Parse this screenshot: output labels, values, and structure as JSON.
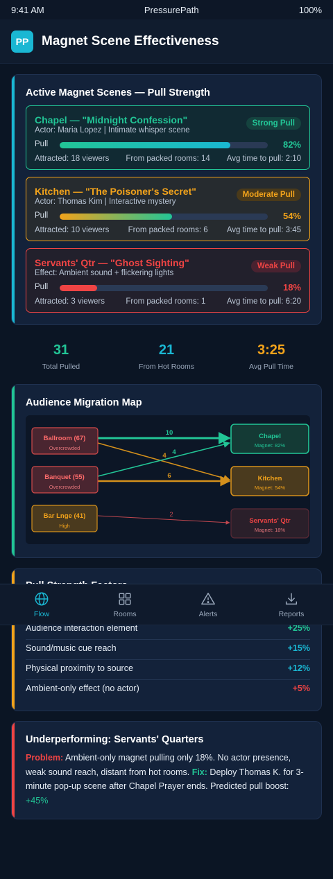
{
  "status_bar": {
    "time": "9:41 AM",
    "app_name": "PressurePath",
    "battery": "100%"
  },
  "header": {
    "logo": "PP",
    "title": "Magnet Scene Effectiveness"
  },
  "active_scenes": {
    "title": "Active Magnet Scenes — Pull Strength",
    "pull_label": "Pull",
    "scenes": [
      {
        "name": "Chapel — \"Midnight Confession\"",
        "subtitle": "Actor: Maria Lopez | Intimate whisper scene",
        "badge": "Strong Pull",
        "pull_percent": "82%",
        "pull_fraction": 0.82,
        "attracted": "Attracted: 18 viewers",
        "packed": "From packed rooms: 14",
        "avg_time": "Avg time to pull: 2:10",
        "color": "#22c596"
      },
      {
        "name": "Kitchen — \"The Poisoner's Secret\"",
        "subtitle": "Actor: Thomas Kim | Interactive mystery",
        "badge": "Moderate Pull",
        "pull_percent": "54%",
        "pull_fraction": 0.54,
        "attracted": "Attracted: 10 viewers",
        "packed": "From packed rooms: 6",
        "avg_time": "Avg time to pull: 3:45",
        "color": "#f2a31b"
      },
      {
        "name": "Servants' Qtr — \"Ghost Sighting\"",
        "subtitle": "Effect: Ambient sound + flickering lights",
        "badge": "Weak Pull",
        "pull_percent": "18%",
        "pull_fraction": 0.18,
        "attracted": "Attracted: 3 viewers",
        "packed": "From packed rooms: 1",
        "avg_time": "Avg time to pull: 6:20",
        "color": "#ef4444"
      }
    ]
  },
  "summary": [
    {
      "value": "31",
      "label": "Total Pulled",
      "color": "#22c596"
    },
    {
      "value": "21",
      "label": "From Hot Rooms",
      "color": "#1ab7d3"
    },
    {
      "value": "3:25",
      "label": "Avg Pull Time",
      "color": "#f2a31b"
    }
  ],
  "migration_map": {
    "title": "Audience Migration Map",
    "sources": [
      {
        "name": "Ballroom (67)",
        "status": "Overcrowded"
      },
      {
        "name": "Banquet (55)",
        "status": "Overcrowded"
      },
      {
        "name": "Bar Lnge (41)",
        "status": "High"
      }
    ],
    "targets": [
      {
        "name": "Chapel",
        "magnet": "Magnet: 82%"
      },
      {
        "name": "Kitchen",
        "magnet": "Magnet: 54%"
      },
      {
        "name": "Servants' Qtr",
        "magnet": "Magnet: 18%"
      }
    ],
    "flows": [
      {
        "from": "Ballroom (67)",
        "to": "Chapel",
        "count": "10"
      },
      {
        "from": "Ballroom (67)",
        "to": "Kitchen",
        "count": "4"
      },
      {
        "from": "Banquet (55)",
        "to": "Chapel",
        "count": "4"
      },
      {
        "from": "Banquet (55)",
        "to": "Kitchen",
        "count": "6"
      },
      {
        "from": "Bar Lnge (41)",
        "to": "Servants' Qtr",
        "count": "2"
      }
    ]
  },
  "factors": {
    "title": "Pull Strength Factors",
    "rows": [
      {
        "label": "Audience interaction element",
        "value": "+25%",
        "color": "#22c596"
      },
      {
        "label": "Sound/music cue reach",
        "value": "+15%",
        "color": "#1ab7d3"
      },
      {
        "label": "Physical proximity to source",
        "value": "+12%",
        "color": "#1ab7d3"
      },
      {
        "label": "Ambient-only effect (no actor)",
        "value": "+5%",
        "color": "#ef4444"
      }
    ]
  },
  "underperforming": {
    "title": "Underperforming: Servants' Quarters",
    "problem_label": "Problem:",
    "problem_text": " Ambient-only magnet pulling only 18%. No actor presence, weak sound reach, distant from hot rooms. ",
    "fix_label": "Fix:",
    "fix_text": " Deploy Thomas K. for 3-minute pop-up scene after Chapel Prayer ends. Predicted pull boost: ",
    "boost": "+45%"
  },
  "nav": {
    "items": [
      {
        "label": "Flow",
        "icon": "globe-icon",
        "active": true
      },
      {
        "label": "Rooms",
        "icon": "grid-icon",
        "active": false
      },
      {
        "label": "Alerts",
        "icon": "warning-triangle-icon",
        "active": false
      },
      {
        "label": "Reports",
        "icon": "download-icon",
        "active": false
      }
    ]
  },
  "colors": {
    "accent_teal": "#1ab7d3",
    "strong": "#22c596",
    "moderate": "#f2a31b",
    "weak": "#ef4444",
    "background": "#0b1524",
    "card": "#13223a"
  }
}
